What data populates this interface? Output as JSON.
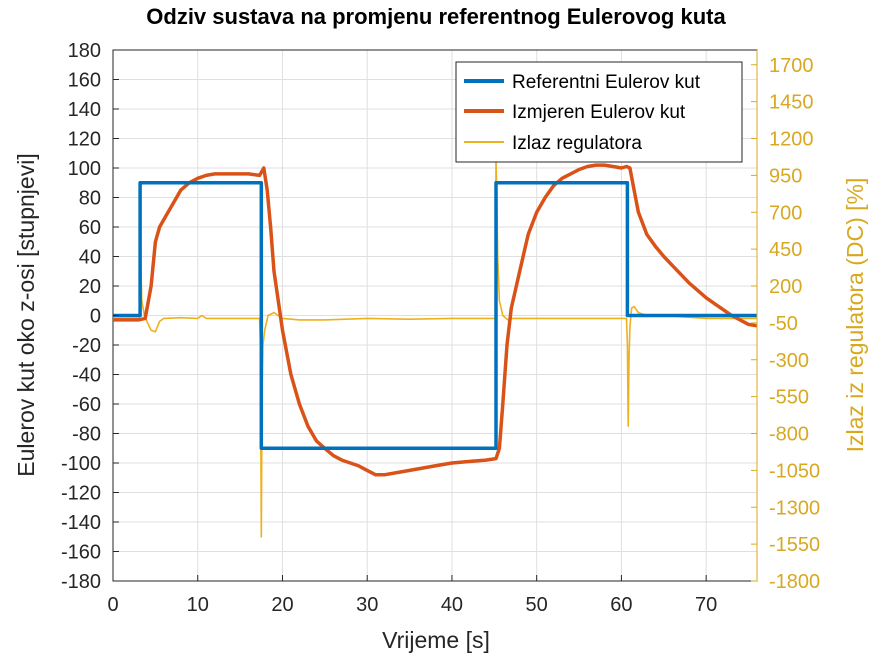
{
  "colors": {
    "reference": "#0072BD",
    "measured": "#D95319",
    "controller": "#EDB120",
    "axis_left": "#262626",
    "axis_right": "#D9A821",
    "grid": "#DFDFDF"
  },
  "chart_data": {
    "type": "line",
    "title": "Odziv sustava na promjenu referentnog Eulerovog kuta",
    "xlabel": "Vrijeme [s]",
    "ylabel": "Eulerov kut oko z-osi [stupnjevi]",
    "ylabel_right": "Izlaz iz regulatora (DC) [%]",
    "xlim": [
      0,
      76
    ],
    "ylim": [
      -180,
      180
    ],
    "ylim_right": [
      -1800,
      1800
    ],
    "x_ticks": [
      0,
      10,
      20,
      30,
      40,
      50,
      60,
      70
    ],
    "y_ticks": [
      180,
      160,
      140,
      120,
      100,
      80,
      60,
      40,
      20,
      0,
      -20,
      -40,
      -60,
      -80,
      -100,
      -120,
      -140,
      -160,
      -180
    ],
    "y_right_ticks": [
      1700,
      1450,
      1200,
      950,
      700,
      450,
      200,
      -50,
      -300,
      -550,
      -800,
      -1050,
      -1300,
      -1550,
      -1800
    ],
    "grid": true,
    "legend_position": "top-right",
    "series": [
      {
        "name": "Referentni Eulerov kut",
        "axis": "left",
        "x": [
          0,
          3.2,
          3.2,
          17.5,
          17.5,
          45.2,
          45.2,
          60.7,
          60.7,
          76
        ],
        "y": [
          0,
          0,
          90,
          90,
          -90,
          -90,
          90,
          90,
          0,
          0
        ]
      },
      {
        "name": "Izmjeren Eulerov kut",
        "axis": "left",
        "x": [
          0,
          3.0,
          3.8,
          4.5,
          5.0,
          5.5,
          6.0,
          7.0,
          8.0,
          9.0,
          10.0,
          11.0,
          12.0,
          13.0,
          14.0,
          15.0,
          16.0,
          17.3,
          17.8,
          18.2,
          18.6,
          19.0,
          20.0,
          21.0,
          22.0,
          23.0,
          24.0,
          25.0,
          26.0,
          27.0,
          28.0,
          29.0,
          30.0,
          31.0,
          32.0,
          34.0,
          36.0,
          38.0,
          40.0,
          42.0,
          44.0,
          45.2,
          45.6,
          46.0,
          46.5,
          47.0,
          48.0,
          49.0,
          50.0,
          51.0,
          52.0,
          53.0,
          54.0,
          55.0,
          56.0,
          57.0,
          58.0,
          59.0,
          60.0,
          60.6,
          61.0,
          61.5,
          62.0,
          63.0,
          64.0,
          65.0,
          66.0,
          67.0,
          68.0,
          69.0,
          70.0,
          71.0,
          72.0,
          73.0,
          74.0,
          75.0,
          76.0
        ],
        "y": [
          -3,
          -3,
          -2,
          20,
          50,
          60,
          65,
          75,
          85,
          90,
          93,
          95,
          96,
          96,
          96,
          96,
          96,
          95,
          100,
          85,
          60,
          30,
          -10,
          -40,
          -60,
          -75,
          -85,
          -90,
          -95,
          -98,
          -100,
          -102,
          -105,
          -108,
          -108,
          -106,
          -104,
          -102,
          -100,
          -99,
          -98,
          -97,
          -90,
          -60,
          -20,
          5,
          30,
          55,
          70,
          80,
          88,
          93,
          96,
          99,
          101,
          102,
          102,
          101,
          100,
          101,
          100,
          85,
          70,
          55,
          47,
          40,
          34,
          28,
          22,
          17,
          12,
          8,
          4,
          0,
          -3,
          -6,
          -7
        ]
      },
      {
        "name": "Izlaz regulatora",
        "axis": "right",
        "x": [
          0,
          3.1,
          3.2,
          3.3,
          3.4,
          3.7,
          4.0,
          4.5,
          5.0,
          5.5,
          6.0,
          8.0,
          10.0,
          10.5,
          11.0,
          13.0,
          15.0,
          17.3,
          17.4,
          17.5,
          17.6,
          17.7,
          17.9,
          18.3,
          19.0,
          20.0,
          22.0,
          25.0,
          30.0,
          35.0,
          40.0,
          45.1,
          45.2,
          45.3,
          45.4,
          45.6,
          46.0,
          46.6,
          47.0,
          48.0,
          50.0,
          55.0,
          60.6,
          60.7,
          60.8,
          60.9,
          61.0,
          61.2,
          61.5,
          62.0,
          63.0,
          65.0,
          70.0,
          76.0
        ],
        "y": [
          -20,
          -20,
          780,
          300,
          100,
          0,
          -40,
          -100,
          -110,
          -40,
          -20,
          -15,
          -20,
          0,
          -20,
          -20,
          -20,
          -20,
          -200,
          -1500,
          -500,
          -200,
          -100,
          0,
          20,
          -20,
          -30,
          -30,
          -20,
          -25,
          -20,
          -20,
          1050,
          800,
          400,
          100,
          0,
          -30,
          -20,
          -20,
          -20,
          -20,
          -20,
          -200,
          -750,
          -300,
          -80,
          50,
          60,
          20,
          0,
          0,
          -20,
          -20
        ]
      }
    ]
  }
}
